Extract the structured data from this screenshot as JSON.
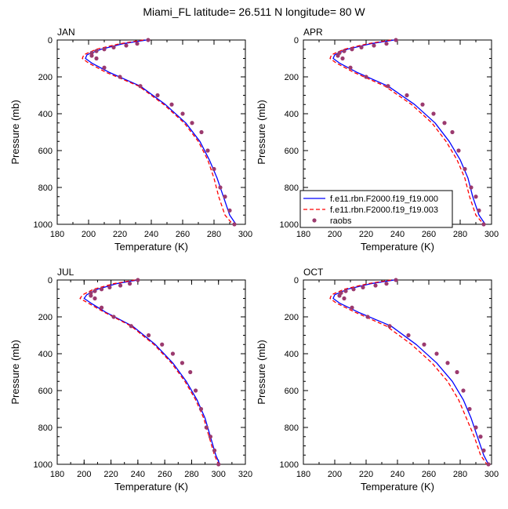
{
  "title": "Miami_FL  latitude= 26.511 N longitude= 80 W",
  "colors": {
    "series_000": "#0000ff",
    "series_003": "#ff0000",
    "raobs": "#9b3a6e",
    "axes": "#000000"
  },
  "legend": {
    "items": [
      {
        "label": "f.e11.rbn.F2000.f19_f19.000",
        "style": "solid",
        "color": "#0000ff"
      },
      {
        "label": "f.e11.rbn.F2000.f19_f19.003",
        "style": "dashed",
        "color": "#ff0000"
      },
      {
        "label": "raobs",
        "style": "dot",
        "color": "#9b3a6e"
      }
    ]
  },
  "chart_data": [
    {
      "type": "line",
      "panel": "JAN",
      "xlabel": "Temperature (K)",
      "ylabel": "Pressure (mb)",
      "xlim": [
        180,
        300
      ],
      "xticks": [
        180,
        200,
        220,
        240,
        260,
        280,
        300
      ],
      "ylim": [
        1000,
        0
      ],
      "yticks": [
        0,
        200,
        400,
        600,
        800,
        1000
      ],
      "series": [
        {
          "name": "f.e11.rbn.F2000.f19_f19.000",
          "x": [
            237,
            222,
            208,
            199,
            198,
            202,
            213,
            233,
            249,
            262,
            271,
            277,
            282,
            286,
            290,
            294
          ],
          "y": [
            0,
            20,
            50,
            80,
            100,
            125,
            175,
            250,
            350,
            450,
            550,
            650,
            750,
            850,
            950,
            1000
          ]
        },
        {
          "name": "f.e11.rbn.F2000.f19_f19.003",
          "x": [
            235,
            220,
            205,
            197,
            196,
            200,
            211,
            232,
            248,
            261,
            270,
            276,
            280,
            283,
            287,
            292
          ],
          "y": [
            0,
            20,
            50,
            80,
            100,
            125,
            175,
            250,
            350,
            450,
            550,
            650,
            750,
            850,
            950,
            1000
          ]
        },
        {
          "name": "raobs",
          "x": [
            238,
            231,
            224,
            216,
            210,
            205,
            202,
            202,
            205,
            210,
            220,
            233,
            244,
            253,
            260,
            266,
            272,
            276,
            280,
            284,
            287,
            290,
            293
          ],
          "y": [
            0,
            20,
            30,
            40,
            50,
            60,
            70,
            85,
            100,
            150,
            200,
            250,
            300,
            350,
            400,
            450,
            500,
            600,
            700,
            800,
            850,
            925,
            1000
          ]
        }
      ]
    },
    {
      "type": "line",
      "panel": "APR",
      "xlabel": "Temperature (K)",
      "ylabel": "Pressure (mb)",
      "xlim": [
        180,
        300
      ],
      "xticks": [
        180,
        200,
        220,
        240,
        260,
        280,
        300
      ],
      "ylim": [
        1000,
        0
      ],
      "yticks": [
        0,
        200,
        400,
        600,
        800,
        1000
      ],
      "series": [
        {
          "name": "f.e11.rbn.F2000.f19_f19.000",
          "x": [
            238,
            223,
            208,
            200,
            199,
            203,
            214,
            234,
            251,
            264,
            273,
            280,
            285,
            288,
            292,
            296
          ],
          "y": [
            0,
            20,
            50,
            80,
            100,
            125,
            175,
            250,
            350,
            450,
            550,
            650,
            750,
            850,
            950,
            1000
          ]
        },
        {
          "name": "f.e11.rbn.F2000.f19_f19.003",
          "x": [
            236,
            221,
            206,
            198,
            197,
            201,
            212,
            232,
            249,
            262,
            271,
            278,
            283,
            286,
            290,
            295
          ],
          "y": [
            0,
            20,
            50,
            80,
            100,
            125,
            175,
            250,
            350,
            450,
            550,
            650,
            750,
            850,
            950,
            1000
          ]
        },
        {
          "name": "raobs",
          "x": [
            239,
            233,
            225,
            217,
            211,
            206,
            203,
            202,
            205,
            210,
            220,
            234,
            246,
            256,
            263,
            270,
            275,
            279,
            283,
            287,
            290,
            292,
            295
          ],
          "y": [
            0,
            20,
            30,
            40,
            50,
            60,
            70,
            85,
            100,
            150,
            200,
            250,
            300,
            350,
            400,
            450,
            500,
            600,
            700,
            800,
            850,
            925,
            1000
          ]
        }
      ]
    },
    {
      "type": "line",
      "panel": "JUL",
      "xlabel": "Temperature (K)",
      "ylabel": "Pressure (mb)",
      "xlim": [
        180,
        320
      ],
      "xticks": [
        180,
        200,
        220,
        240,
        260,
        280,
        300,
        320
      ],
      "ylim": [
        1000,
        0
      ],
      "yticks": [
        0,
        200,
        400,
        600,
        800,
        1000
      ],
      "series": [
        {
          "name": "f.e11.rbn.F2000.f19_f19.000",
          "x": [
            240,
            224,
            210,
            202,
            200,
            205,
            216,
            236,
            253,
            266,
            276,
            284,
            290,
            294,
            298,
            301
          ],
          "y": [
            0,
            20,
            50,
            80,
            100,
            125,
            175,
            250,
            350,
            450,
            550,
            650,
            750,
            850,
            950,
            1000
          ]
        },
        {
          "name": "f.e11.rbn.F2000.f19_f19.003",
          "x": [
            238,
            222,
            207,
            199,
            197,
            203,
            215,
            235,
            252,
            265,
            275,
            283,
            289,
            293,
            297,
            300
          ],
          "y": [
            0,
            20,
            50,
            80,
            100,
            125,
            175,
            250,
            350,
            450,
            550,
            650,
            750,
            850,
            950,
            1000
          ]
        },
        {
          "name": "raobs",
          "x": [
            240,
            234,
            227,
            219,
            213,
            208,
            205,
            205,
            208,
            213,
            222,
            235,
            248,
            258,
            266,
            273,
            279,
            283,
            287,
            291,
            294,
            297,
            300
          ],
          "y": [
            0,
            20,
            30,
            40,
            50,
            60,
            70,
            85,
            100,
            150,
            200,
            250,
            300,
            350,
            400,
            450,
            500,
            600,
            700,
            800,
            850,
            925,
            1000
          ]
        }
      ]
    },
    {
      "type": "line",
      "panel": "OCT",
      "xlabel": "Temperature (K)",
      "ylabel": "Pressure (mb)",
      "xlim": [
        180,
        300
      ],
      "xticks": [
        180,
        200,
        220,
        240,
        260,
        280,
        300
      ],
      "ylim": [
        1000,
        0
      ],
      "yticks": [
        0,
        200,
        400,
        600,
        800,
        1000
      ],
      "series": [
        {
          "name": "f.e11.rbn.F2000.f19_f19.000",
          "x": [
            238,
            223,
            208,
            200,
            199,
            203,
            215,
            236,
            252,
            265,
            275,
            282,
            287,
            291,
            295,
            298
          ],
          "y": [
            0,
            20,
            50,
            80,
            100,
            125,
            175,
            250,
            350,
            450,
            550,
            650,
            750,
            850,
            950,
            1000
          ]
        },
        {
          "name": "f.e11.rbn.F2000.f19_f19.003",
          "x": [
            236,
            221,
            206,
            198,
            197,
            201,
            213,
            233,
            249,
            262,
            272,
            279,
            284,
            289,
            293,
            297
          ],
          "y": [
            0,
            20,
            50,
            80,
            100,
            125,
            175,
            250,
            350,
            450,
            550,
            650,
            750,
            850,
            950,
            1000
          ]
        },
        {
          "name": "raobs",
          "x": [
            239,
            233,
            226,
            218,
            212,
            207,
            204,
            203,
            206,
            211,
            221,
            235,
            247,
            257,
            265,
            272,
            278,
            282,
            286,
            290,
            293,
            295,
            298
          ],
          "y": [
            0,
            20,
            30,
            40,
            50,
            60,
            70,
            85,
            100,
            150,
            200,
            250,
            300,
            350,
            400,
            450,
            500,
            600,
            700,
            800,
            850,
            925,
            1000
          ]
        }
      ]
    }
  ]
}
